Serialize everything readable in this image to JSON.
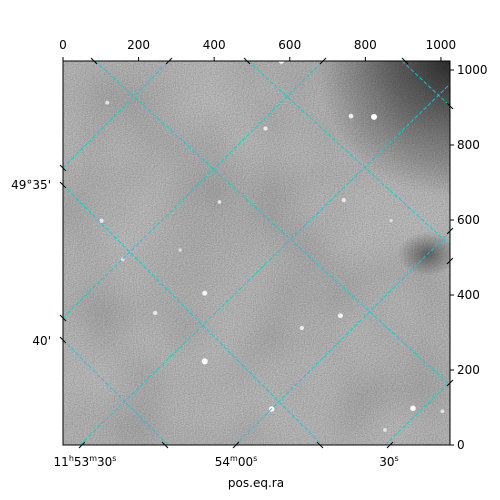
{
  "chart_data": {
    "type": "scatter",
    "title": "",
    "xlabel": "pos.eq.ra",
    "ylabel": "",
    "pixel_axes": {
      "x_ticks": [
        0,
        200,
        400,
        600,
        800,
        1000
      ],
      "x_tick_labels": [
        "0",
        "200",
        "400",
        "600",
        "800",
        "1000"
      ],
      "xlim": [
        0,
        1024
      ],
      "y_ticks": [
        0,
        200,
        400,
        600,
        800,
        1000
      ],
      "y_tick_labels": [
        "0",
        "200",
        "400",
        "600",
        "800",
        "1000"
      ],
      "ylim": [
        0,
        1024
      ]
    },
    "world_axes": {
      "ra_tick_labels": [
        {
          "h": "11",
          "m": "53",
          "s": "30"
        },
        {
          "m": "54",
          "s": "00"
        },
        {
          "s": "30"
        }
      ],
      "dec_tick_labels": [
        {
          "deg": "49",
          "arcmin": "35"
        },
        {
          "arcmin": "40"
        }
      ]
    },
    "grid": true,
    "grid_color": "#00d4d4",
    "image": "grayscale sky background with point sources",
    "sources": [
      {
        "x": 578,
        "y": 1024,
        "brightness": 0.9
      },
      {
        "x": 823,
        "y": 875,
        "brightness": 1.0
      },
      {
        "x": 762,
        "y": 877,
        "brightness": 0.7
      },
      {
        "x": 536,
        "y": 844,
        "brightness": 0.6
      },
      {
        "x": 117,
        "y": 913,
        "brightness": 0.5
      },
      {
        "x": 414,
        "y": 648,
        "brightness": 0.5
      },
      {
        "x": 743,
        "y": 653,
        "brightness": 0.6
      },
      {
        "x": 102,
        "y": 598,
        "brightness": 0.6
      },
      {
        "x": 158,
        "y": 495,
        "brightness": 0.5
      },
      {
        "x": 375,
        "y": 405,
        "brightness": 0.8
      },
      {
        "x": 244,
        "y": 352,
        "brightness": 0.6
      },
      {
        "x": 734,
        "y": 345,
        "brightness": 0.8
      },
      {
        "x": 632,
        "y": 312,
        "brightness": 0.6
      },
      {
        "x": 375,
        "y": 223,
        "brightness": 1.0
      },
      {
        "x": 552,
        "y": 96,
        "brightness": 0.9
      },
      {
        "x": 926,
        "y": 98,
        "brightness": 0.9
      },
      {
        "x": 852,
        "y": 40,
        "brightness": 0.5
      },
      {
        "x": 1004,
        "y": 90,
        "brightness": 0.5
      },
      {
        "x": 868,
        "y": 598,
        "brightness": 0.4
      },
      {
        "x": 310,
        "y": 520,
        "brightness": 0.4
      }
    ]
  }
}
